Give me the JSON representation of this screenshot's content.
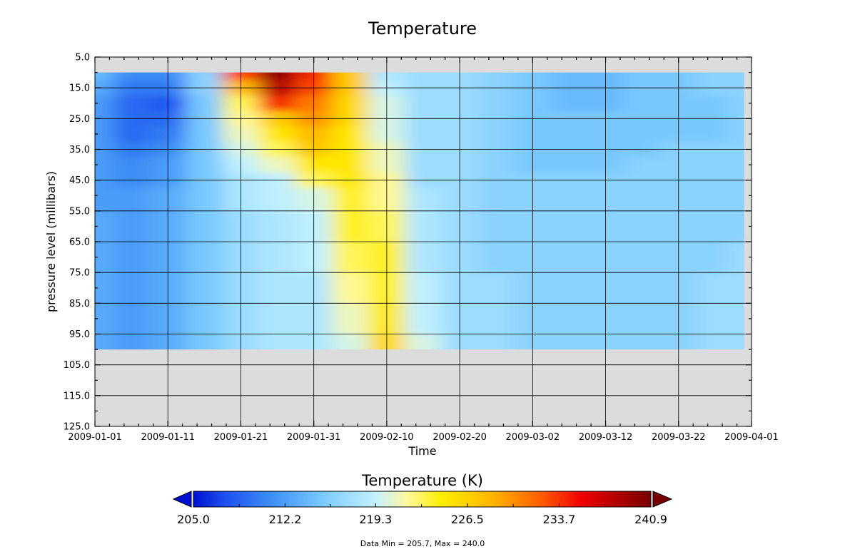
{
  "chart_data": {
    "type": "heatmap",
    "title": "Temperature",
    "xlabel": "Time",
    "ylabel": "pressure level (millibars)",
    "x_tick_labels": [
      "2009-01-01",
      "2009-01-11",
      "2009-01-21",
      "2009-01-31",
      "2009-02-10",
      "2009-02-20",
      "2009-03-02",
      "2009-03-12",
      "2009-03-22",
      "2009-04-01"
    ],
    "y_tick_labels": [
      "5.0",
      "15.0",
      "25.0",
      "35.0",
      "45.0",
      "55.0",
      "65.0",
      "75.0",
      "85.0",
      "95.0",
      "105.0",
      "115.0",
      "125.0"
    ],
    "xlim": [
      "2009-01-01",
      "2009-04-01"
    ],
    "ylim": [
      5.0,
      125.0
    ],
    "y_inverted": true,
    "grid": true,
    "missing_color": "#dcdcdc",
    "data_extent": {
      "x": [
        "2009-01-01",
        "2009-03-31"
      ],
      "y": [
        10.0,
        100.0
      ]
    },
    "levels": [
      10,
      15,
      20,
      25,
      30,
      35,
      40,
      45,
      50,
      60,
      70,
      80,
      90,
      100
    ],
    "times": [
      "2009-01-01",
      "2009-01-06",
      "2009-01-11",
      "2009-01-16",
      "2009-01-21",
      "2009-01-26",
      "2009-01-31",
      "2009-02-05",
      "2009-02-10",
      "2009-02-15",
      "2009-02-20",
      "2009-02-25",
      "2009-03-02",
      "2009-03-07",
      "2009-03-12",
      "2009-03-17",
      "2009-03-22",
      "2009-03-27",
      "2009-03-31"
    ],
    "values": [
      [
        214,
        211,
        211,
        216,
        233,
        240,
        234,
        227,
        218,
        217,
        217,
        216,
        215,
        214,
        214,
        215,
        215,
        216,
        216
      ],
      [
        213,
        210,
        210,
        216,
        228,
        238,
        233,
        227,
        219,
        217,
        217,
        216,
        215,
        214,
        214,
        215,
        215,
        216,
        216
      ],
      [
        212,
        209,
        208,
        215,
        223,
        234,
        231,
        226,
        220,
        217,
        217,
        216,
        215,
        214,
        214,
        215,
        215,
        215,
        216
      ],
      [
        212,
        209,
        209,
        215,
        222,
        227,
        230,
        226,
        220,
        217,
        217,
        216,
        215,
        215,
        215,
        215,
        215,
        215,
        216
      ],
      [
        212,
        209,
        210,
        215,
        221,
        225,
        228,
        225,
        220,
        217,
        217,
        216,
        215,
        215,
        215,
        215,
        215,
        215,
        216
      ],
      [
        212,
        210,
        211,
        215,
        220,
        223,
        227,
        225,
        221,
        217,
        217,
        216,
        215,
        215,
        215,
        215,
        216,
        216,
        216
      ],
      [
        212,
        211,
        212,
        215,
        219,
        221,
        225,
        225,
        221,
        217,
        217,
        216,
        215,
        215,
        215,
        216,
        216,
        216,
        216
      ],
      [
        212,
        211,
        212,
        215,
        218,
        219,
        223,
        225,
        222,
        217,
        217,
        216,
        216,
        216,
        216,
        216,
        216,
        216,
        216
      ],
      [
        212,
        212,
        213,
        215,
        218,
        219,
        220,
        224,
        222,
        218,
        217,
        216,
        216,
        216,
        216,
        216,
        216,
        216,
        216
      ],
      [
        213,
        212,
        213,
        215,
        217,
        218,
        219,
        224,
        223,
        218,
        217,
        216,
        216,
        216,
        216,
        216,
        216,
        216,
        216
      ],
      [
        213,
        212,
        213,
        215,
        217,
        218,
        219,
        223,
        224,
        218,
        217,
        216,
        216,
        216,
        216,
        216,
        216,
        216,
        217
      ],
      [
        213,
        212,
        213,
        215,
        217,
        218,
        218,
        222,
        224,
        219,
        217,
        217,
        216,
        216,
        216,
        216,
        216,
        217,
        217
      ],
      [
        213,
        212,
        213,
        215,
        217,
        218,
        218,
        221,
        225,
        219,
        217,
        217,
        216,
        216,
        216,
        216,
        216,
        217,
        217
      ],
      [
        213,
        212,
        213,
        215,
        217,
        218,
        218,
        220,
        226,
        220,
        217,
        217,
        216,
        216,
        216,
        216,
        216,
        217,
        217
      ]
    ],
    "colorbar": {
      "title": "Temperature (K)",
      "min": 205.0,
      "max": 240.9,
      "tick_labels": [
        "205.0",
        "212.2",
        "219.3",
        "226.5",
        "233.7",
        "240.9"
      ],
      "extend": "both",
      "stops": [
        {
          "v": 205.0,
          "color": "#0010d0"
        },
        {
          "v": 207.5,
          "color": "#1e50f0"
        },
        {
          "v": 211.0,
          "color": "#3c8cf5"
        },
        {
          "v": 215.0,
          "color": "#78c8ff"
        },
        {
          "v": 219.3,
          "color": "#c4f2ff"
        },
        {
          "v": 221.8,
          "color": "#fff8a0"
        },
        {
          "v": 224.5,
          "color": "#ffee00"
        },
        {
          "v": 228.5,
          "color": "#ffb400"
        },
        {
          "v": 232.0,
          "color": "#ff6400"
        },
        {
          "v": 235.5,
          "color": "#f00000"
        },
        {
          "v": 240.9,
          "color": "#780000"
        }
      ]
    },
    "footnote": "Data Min = 205.7, Max = 240.0"
  }
}
